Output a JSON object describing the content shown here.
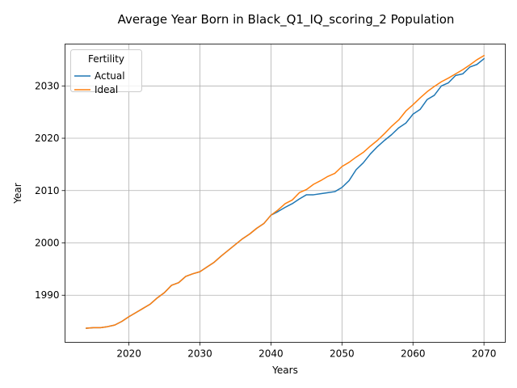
{
  "chart_data": {
    "type": "line",
    "title": "Average Year Born in Black_Q1_IQ_scoring_2 Population",
    "xlabel": "Years",
    "ylabel": "Year",
    "xlim": [
      2011,
      2073
    ],
    "ylim": [
      1981,
      2038
    ],
    "xticks": [
      2020,
      2030,
      2040,
      2050,
      2060,
      2070
    ],
    "yticks": [
      1990,
      2000,
      2010,
      2020,
      2030
    ],
    "grid": true,
    "legend": {
      "title": "Fertility",
      "position": "top-left"
    },
    "x": [
      2014,
      2015,
      2016,
      2017,
      2018,
      2019,
      2020,
      2021,
      2022,
      2023,
      2024,
      2025,
      2026,
      2027,
      2028,
      2029,
      2030,
      2031,
      2032,
      2033,
      2034,
      2035,
      2036,
      2037,
      2038,
      2039,
      2040,
      2041,
      2042,
      2043,
      2044,
      2045,
      2046,
      2047,
      2048,
      2049,
      2050,
      2051,
      2052,
      2053,
      2054,
      2055,
      2056,
      2057,
      2058,
      2059,
      2060,
      2061,
      2062,
      2063,
      2064,
      2065,
      2066,
      2067,
      2068,
      2069,
      2070
    ],
    "series": [
      {
        "name": "Actual",
        "color": "#1f77b4",
        "values": [
          1983.7,
          1983.8,
          1983.8,
          1984.0,
          1984.3,
          1985.0,
          1985.9,
          1986.7,
          1987.5,
          1988.3,
          1989.5,
          1990.5,
          1991.9,
          1992.4,
          1993.6,
          1994.1,
          1994.5,
          1995.4,
          1996.3,
          1997.5,
          1998.6,
          1999.7,
          2000.8,
          2001.7,
          2002.8,
          2003.7,
          2005.3,
          2006.0,
          2006.8,
          2007.5,
          2008.4,
          2009.2,
          2009.2,
          2009.4,
          2009.6,
          2009.8,
          2010.6,
          2011.9,
          2014.0,
          2015.3,
          2017.0,
          2018.4,
          2019.6,
          2020.7,
          2022.0,
          2022.9,
          2024.6,
          2025.5,
          2027.4,
          2028.2,
          2030.0,
          2030.6,
          2032.0,
          2032.3,
          2033.6,
          2034.1,
          2035.2
        ]
      },
      {
        "name": "Ideal",
        "color": "#ff7f0e",
        "values": [
          1983.7,
          1983.8,
          1983.8,
          1984.0,
          1984.3,
          1985.0,
          1985.9,
          1986.7,
          1987.5,
          1988.3,
          1989.5,
          1990.5,
          1991.9,
          1992.4,
          1993.6,
          1994.1,
          1994.5,
          1995.4,
          1996.3,
          1997.5,
          1998.6,
          1999.7,
          2000.8,
          2001.7,
          2002.8,
          2003.7,
          2005.3,
          2006.3,
          2007.5,
          2008.2,
          2009.6,
          2010.2,
          2011.2,
          2011.9,
          2012.7,
          2013.3,
          2014.6,
          2015.4,
          2016.4,
          2017.3,
          2018.5,
          2019.6,
          2020.9,
          2022.3,
          2023.5,
          2025.2,
          2026.4,
          2027.7,
          2028.9,
          2029.9,
          2030.8,
          2031.5,
          2032.3,
          2033.1,
          2034.0,
          2035.0,
          2035.8
        ]
      }
    ]
  }
}
